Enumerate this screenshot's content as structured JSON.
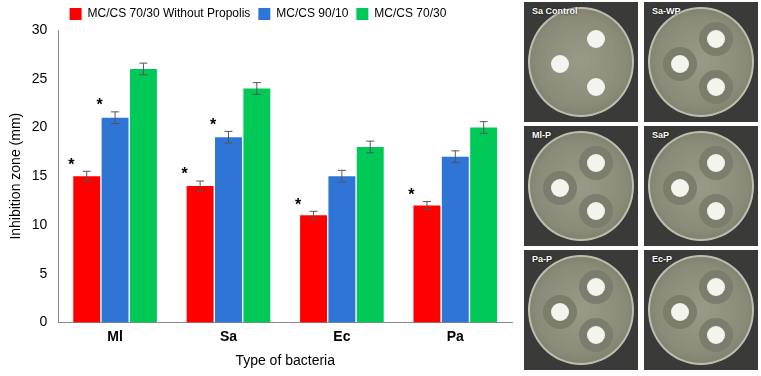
{
  "chart_data": {
    "type": "bar",
    "x_label": "Type of bacteria",
    "y_label": "Inhibition zone (mm)",
    "categories": [
      "Ml",
      "Sa",
      "Ec",
      "Pa"
    ],
    "series": [
      {
        "name": "MC/CS 70/30 Without Propolis",
        "color": "#ff0000",
        "values": [
          15,
          14,
          11,
          12
        ],
        "errors": [
          0.5,
          0.5,
          0.4,
          0.4
        ],
        "significance": [
          "*",
          "*",
          "*",
          "*"
        ]
      },
      {
        "name": "MC/CS 90/10",
        "color": "#2f75d6",
        "values": [
          21,
          19,
          15,
          17
        ],
        "errors": [
          0.6,
          0.6,
          0.6,
          0.6
        ],
        "significance": [
          "*",
          "*",
          null,
          null
        ]
      },
      {
        "name": "MC/CS 70/30",
        "color": "#00c957",
        "values": [
          26,
          24,
          18,
          20
        ],
        "errors": [
          0.6,
          0.6,
          0.6,
          0.6
        ],
        "significance": [
          null,
          null,
          null,
          null
        ]
      }
    ],
    "ylim": [
      0,
      30
    ],
    "yticks": [
      0,
      5,
      10,
      15,
      20,
      25,
      30
    ],
    "grid": false,
    "legend": "top"
  },
  "photo_panels": [
    "Sa Control",
    "Sa-WP",
    "Ml-P",
    "SaP",
    "Pa-P",
    "Ec-P"
  ]
}
